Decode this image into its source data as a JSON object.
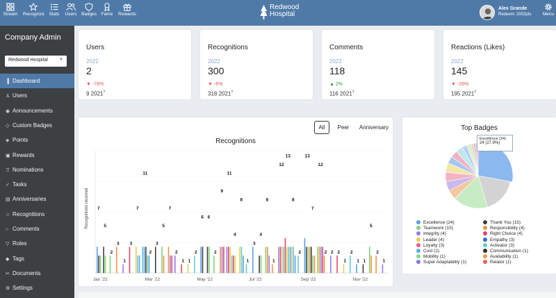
{
  "topbar": {
    "nav": [
      {
        "label": "Stream",
        "icon": "stream-icon"
      },
      {
        "label": "Recognize",
        "icon": "star-icon"
      },
      {
        "label": "Stats",
        "icon": "stats-icon"
      },
      {
        "label": "Users",
        "icon": "users-icon"
      },
      {
        "label": "Badges",
        "icon": "badge-icon"
      },
      {
        "label": "Fame",
        "icon": "fame-icon"
      },
      {
        "label": "Rewards",
        "icon": "gift-icon"
      }
    ],
    "brand_line1": "Redwood",
    "brand_line2": "Hospital",
    "user_name": "Alex Grande",
    "user_points": "Redeem: 2002pts",
    "menu_label": "Menu"
  },
  "sidebar": {
    "title": "Company Admin",
    "org_select": "Redwood Hospital",
    "items": [
      {
        "label": "Dashboard",
        "icon": "chart-icon",
        "active": true
      },
      {
        "label": "Users",
        "icon": "user-icon"
      },
      {
        "label": "Announcements",
        "icon": "broadcast-icon"
      },
      {
        "label": "Custom Badges",
        "icon": "shield-icon"
      },
      {
        "label": "Points",
        "icon": "tag-icon"
      },
      {
        "label": "Rewards",
        "icon": "gift-icon"
      },
      {
        "label": "Nominations",
        "icon": "trophy-icon"
      },
      {
        "label": "Tasks",
        "icon": "check-circle-icon"
      },
      {
        "label": "Anniversaries",
        "icon": "calendar-icon"
      },
      {
        "label": "Recognitions",
        "icon": "star-icon"
      },
      {
        "label": "Comments",
        "icon": "comment-icon"
      },
      {
        "label": "Roles",
        "icon": "filter-icon"
      },
      {
        "label": "Tags",
        "icon": "tags-icon"
      },
      {
        "label": "Documents",
        "icon": "paperclip-icon"
      },
      {
        "label": "Settings",
        "icon": "gear-icon"
      }
    ]
  },
  "stats": [
    {
      "title": "Users",
      "year": "2022",
      "value": "2",
      "change": "-78%",
      "direction": "down",
      "prev": "9 2021"
    },
    {
      "title": "Recognitions",
      "year": "2022",
      "value": "300",
      "change": "-6%",
      "direction": "down",
      "prev": "318 2021"
    },
    {
      "title": "Comments",
      "year": "2022",
      "value": "118",
      "change": "2%",
      "direction": "up",
      "prev": "116 2021"
    },
    {
      "title": "Reactions (Likes)",
      "year": "2022",
      "value": "145",
      "change": "-26%",
      "direction": "down",
      "prev": "195 2021"
    }
  ],
  "recognitions_chart": {
    "tabs": [
      "All",
      "Peer",
      "Anniversary"
    ],
    "active_tab": "All"
  },
  "chart_data": [
    {
      "type": "bar",
      "title": "Recognitions",
      "ylabel": "Recognitions received",
      "xlabel": "",
      "x_tick_labels": [
        "Jan '22",
        "Mar '22",
        "May '22",
        "Jul '22",
        "Sep '22",
        "Nov '22"
      ],
      "ylim": [
        0,
        14
      ],
      "categories": [
        "Jan '22 w1",
        "Jan '22 w2",
        "Jan '22 w3",
        "Jan '22 w4",
        "Feb '22 w1",
        "Feb '22 w2",
        "Feb '22 w3",
        "Feb '22 w4",
        "Mar '22 w1",
        "Mar '22 w2",
        "Mar '22 w3",
        "Mar '22 w4",
        "Apr '22 w1",
        "Apr '22 w2",
        "Apr '22 w3",
        "Apr '22 w4",
        "May '22 w1",
        "May '22 w2",
        "May '22 w3",
        "May '22 w4",
        "Jun '22 w1",
        "Jun '22 w2",
        "Jun '22 w3",
        "Jun '22 w4",
        "Jul '22 w1",
        "Jul '22 w2",
        "Jul '22 w3",
        "Jul '22 w4",
        "Aug '22 w1",
        "Aug '22 w2",
        "Aug '22 w3",
        "Aug '22 w4",
        "Sep '22 w1",
        "Sep '22 w2",
        "Sep '22 w3",
        "Sep '22 w4",
        "Oct '22 w1",
        "Oct '22 w2",
        "Oct '22 w3",
        "Oct '22 w4",
        "Nov '22 w1",
        "Nov '22 w2",
        "Nov '22 w3",
        "Nov '22 w4",
        "Dec '22 w1"
      ],
      "totals": [
        7,
        5,
        2,
        3,
        1,
        3,
        7,
        11,
        2,
        3,
        5,
        7,
        2,
        1,
        1,
        2,
        6,
        6,
        2,
        9,
        11,
        4,
        8,
        1,
        3,
        4,
        8,
        1,
        12,
        13,
        8,
        2,
        13,
        7,
        12,
        2,
        2,
        2,
        1,
        2,
        1,
        1,
        5,
        2,
        1
      ],
      "labels_on_bars": true
    },
    {
      "type": "pie",
      "title": "Top Badges",
      "slices": [
        {
          "label": "Excellence",
          "value": 24,
          "color": "#8ab8ef"
        },
        {
          "label": "Thank You",
          "value": 15,
          "color": "#d3d3d3"
        },
        {
          "label": "Teamwork",
          "value": 15,
          "color": "#c7ecc4"
        },
        {
          "label": "Responsibility",
          "value": 4,
          "color": "#f4c79f"
        },
        {
          "label": "Integrity",
          "value": 4,
          "color": "#c9b9ee"
        },
        {
          "label": "Right Choice",
          "value": 4,
          "color": "#f3b3c3"
        },
        {
          "label": "Leader",
          "value": 4,
          "color": "#f2e6a8"
        },
        {
          "label": "Empathy",
          "value": 3,
          "color": "#a5c6ef"
        },
        {
          "label": "Loyalty",
          "value": 3,
          "color": "#f2b2c6"
        },
        {
          "label": "Activator",
          "value": 3,
          "color": "#bfe8ee"
        },
        {
          "label": "Cost",
          "value": 2,
          "color": "#b3d0f6"
        },
        {
          "label": "Communication",
          "value": 1,
          "color": "#dbe8b8"
        },
        {
          "label": "Mobility",
          "value": 1,
          "color": "#c3efcd"
        },
        {
          "label": "Availability",
          "value": 1,
          "color": "#f6d0a8"
        },
        {
          "label": "Super Adaptability",
          "value": 1,
          "color": "#c6c2f0"
        },
        {
          "label": "Relator",
          "value": 1,
          "color": "#f7b9b9"
        }
      ],
      "legend_items": [
        {
          "text": "Excellence (24)",
          "color": "#5b9fe8"
        },
        {
          "text": "Thank You (15)",
          "color": "#3d3f42"
        },
        {
          "text": "Teamwork (15)",
          "color": "#7ed37a"
        },
        {
          "text": "Responsibility (4)",
          "color": "#f0933f"
        },
        {
          "text": "Integrity (4)",
          "color": "#9779e3"
        },
        {
          "text": "Right Choice (4)",
          "color": "#e2456c"
        },
        {
          "text": "Leader (4)",
          "color": "#e8ce4a"
        },
        {
          "text": "Empathy (3)",
          "color": "#2f6fc4"
        },
        {
          "text": "Loyalty (3)",
          "color": "#e75d90"
        },
        {
          "text": "Activator (3)",
          "color": "#63c9d8"
        },
        {
          "text": "Cost (2)",
          "color": "#6aa6ee"
        },
        {
          "text": "Communication (1)",
          "color": "#2d2d2d"
        },
        {
          "text": "Mobility (1)",
          "color": "#7adf8a"
        },
        {
          "text": "Availability (1)",
          "color": "#f09a46"
        },
        {
          "text": "Super Adaptability (1)",
          "color": "#7f78e6"
        },
        {
          "text": "Relator (1)",
          "color": "#ef5d5d"
        }
      ],
      "tooltip": {
        "line1": "Excellence (24)",
        "line2": "24 (27.9%)"
      }
    }
  ],
  "colors": {
    "header": "#4f7aa8",
    "sidebar": "#3d4043",
    "down": "#e8504c",
    "up": "#2a9a3a"
  }
}
